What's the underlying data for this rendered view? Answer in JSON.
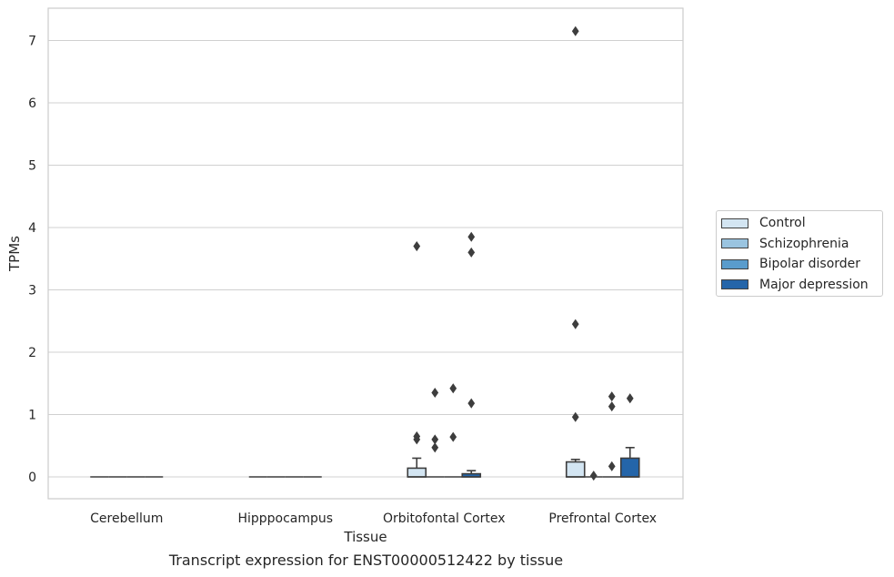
{
  "chart_data": {
    "type": "box",
    "xlabel": "Tissue",
    "ylabel": "TPMs",
    "caption": "Transcript expression for ENST00000512422 by tissue",
    "categories": [
      "Cerebellum",
      "Hipppocampus",
      "Orbitofontal Cortex",
      "Prefrontal Cortex"
    ],
    "ylim": [
      -0.35,
      7.5
    ],
    "yticks": [
      0,
      1,
      2,
      3,
      4,
      5,
      6,
      7
    ],
    "grid": true,
    "legend_position": "right",
    "series": [
      {
        "name": "Control",
        "color": "#d3e5f2",
        "boxes": [
          {
            "q1": 0,
            "median": 0,
            "q3": 0,
            "whisker_low": 0,
            "whisker_high": 0,
            "outliers": []
          },
          {
            "q1": 0,
            "median": 0,
            "q3": 0,
            "whisker_low": 0,
            "whisker_high": 0,
            "outliers": []
          },
          {
            "q1": 0,
            "median": 0,
            "q3": 0.14,
            "whisker_low": 0,
            "whisker_high": 0.3,
            "outliers": [
              0.6,
              0.65,
              3.7
            ]
          },
          {
            "q1": 0,
            "median": 0,
            "q3": 0.24,
            "whisker_low": 0,
            "whisker_high": 0.28,
            "outliers": [
              0.96,
              2.45,
              7.15
            ]
          }
        ]
      },
      {
        "name": "Schizophrenia",
        "color": "#9ac4e0",
        "boxes": [
          {
            "q1": 0,
            "median": 0,
            "q3": 0,
            "whisker_low": 0,
            "whisker_high": 0,
            "outliers": []
          },
          {
            "q1": 0,
            "median": 0,
            "q3": 0,
            "whisker_low": 0,
            "whisker_high": 0,
            "outliers": []
          },
          {
            "q1": 0,
            "median": 0,
            "q3": 0,
            "whisker_low": 0,
            "whisker_high": 0,
            "outliers": [
              0.47,
              0.6,
              1.35
            ]
          },
          {
            "q1": 0,
            "median": 0,
            "q3": 0,
            "whisker_low": 0,
            "whisker_high": 0,
            "outliers": [
              0.02
            ]
          }
        ]
      },
      {
        "name": "Bipolar disorder",
        "color": "#5a9ccc",
        "boxes": [
          {
            "q1": 0,
            "median": 0,
            "q3": 0,
            "whisker_low": 0,
            "whisker_high": 0,
            "outliers": []
          },
          {
            "q1": 0,
            "median": 0,
            "q3": 0,
            "whisker_low": 0,
            "whisker_high": 0,
            "outliers": []
          },
          {
            "q1": 0,
            "median": 0,
            "q3": 0,
            "whisker_low": 0,
            "whisker_high": 0,
            "outliers": [
              0.64,
              1.42
            ]
          },
          {
            "q1": 0,
            "median": 0,
            "q3": 0,
            "whisker_low": 0,
            "whisker_high": 0,
            "outliers": [
              0.17,
              1.13,
              1.29
            ]
          }
        ]
      },
      {
        "name": "Major depression",
        "color": "#2465a9",
        "boxes": [
          {
            "q1": 0,
            "median": 0,
            "q3": 0,
            "whisker_low": 0,
            "whisker_high": 0,
            "outliers": []
          },
          {
            "q1": 0,
            "median": 0,
            "q3": 0,
            "whisker_low": 0,
            "whisker_high": 0,
            "outliers": []
          },
          {
            "q1": 0,
            "median": 0,
            "q3": 0.05,
            "whisker_low": 0,
            "whisker_high": 0.1,
            "outliers": [
              1.18,
              3.6,
              3.85
            ]
          },
          {
            "q1": 0,
            "median": 0,
            "q3": 0.3,
            "whisker_low": 0,
            "whisker_high": 0.47,
            "outliers": [
              1.26
            ]
          }
        ]
      }
    ]
  }
}
